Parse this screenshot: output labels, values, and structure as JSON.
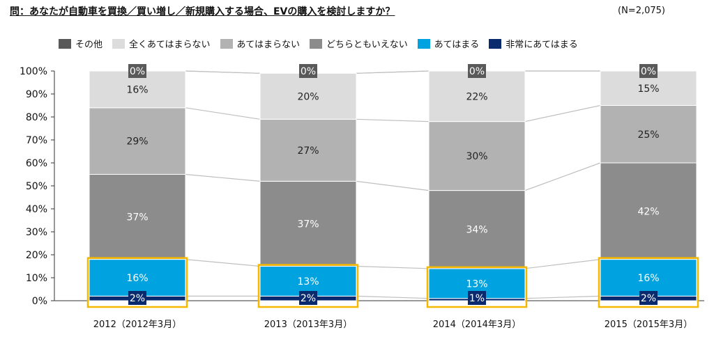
{
  "title": "問：あなたが自動車を買換／買い増し／新規購入する場合、EVの購入を検討しますか？",
  "note": "(N=2,075)",
  "legend": [
    {
      "label": "その他",
      "color": "#595959"
    },
    {
      "label": "全くあてはまらない",
      "color": "#dcdcdc"
    },
    {
      "label": "あてはまらない",
      "color": "#b2b2b2"
    },
    {
      "label": "どちらともいえない",
      "color": "#8c8c8c"
    },
    {
      "label": "あてはまる",
      "color": "#00a3e0"
    },
    {
      "label": "非常にあてはまる",
      "color": "#0a2a6e"
    }
  ],
  "chart_data": {
    "type": "bar",
    "stacked": true,
    "categories": [
      "2012（2012年3月）",
      "2013（2013年3月）",
      "2014（2014年3月）",
      "2015（2015年3月）"
    ],
    "series": [
      {
        "name": "非常にあてはまる",
        "values": [
          2,
          2,
          1,
          2
        ],
        "labels": [
          "2%",
          "2%",
          "1%",
          "2%"
        ],
        "color": "#0a2a6e"
      },
      {
        "name": "あてはまる",
        "values": [
          16,
          13,
          13,
          16
        ],
        "labels": [
          "16%",
          "13%",
          "13%",
          "16%"
        ],
        "color": "#00a3e0"
      },
      {
        "name": "どちらともいえない",
        "values": [
          37,
          37,
          34,
          42
        ],
        "labels": [
          "37%",
          "37%",
          "34%",
          "42%"
        ],
        "color": "#8c8c8c"
      },
      {
        "name": "あてはまらない",
        "values": [
          29,
          27,
          30,
          25
        ],
        "labels": [
          "29%",
          "27%",
          "30%",
          "25%"
        ],
        "color": "#b2b2b2"
      },
      {
        "name": "全くあてはまらない",
        "values": [
          16,
          20,
          22,
          15
        ],
        "labels": [
          "16%",
          "20%",
          "22%",
          "15%"
        ],
        "color": "#dcdcdc"
      },
      {
        "name": "その他",
        "values": [
          0,
          0,
          0,
          0
        ],
        "labels": [
          "0%",
          "0%",
          "0%",
          "0%"
        ],
        "color": "#595959"
      }
    ],
    "ylim": [
      0,
      100
    ],
    "yticks": [
      "0%",
      "10%",
      "20%",
      "30%",
      "40%",
      "50%",
      "60%",
      "70%",
      "80%",
      "90%",
      "100%"
    ],
    "highlight_color": "#f5b800",
    "highlight_series": [
      "非常にあてはまる",
      "あてはまる"
    ],
    "legend_position": "top"
  }
}
